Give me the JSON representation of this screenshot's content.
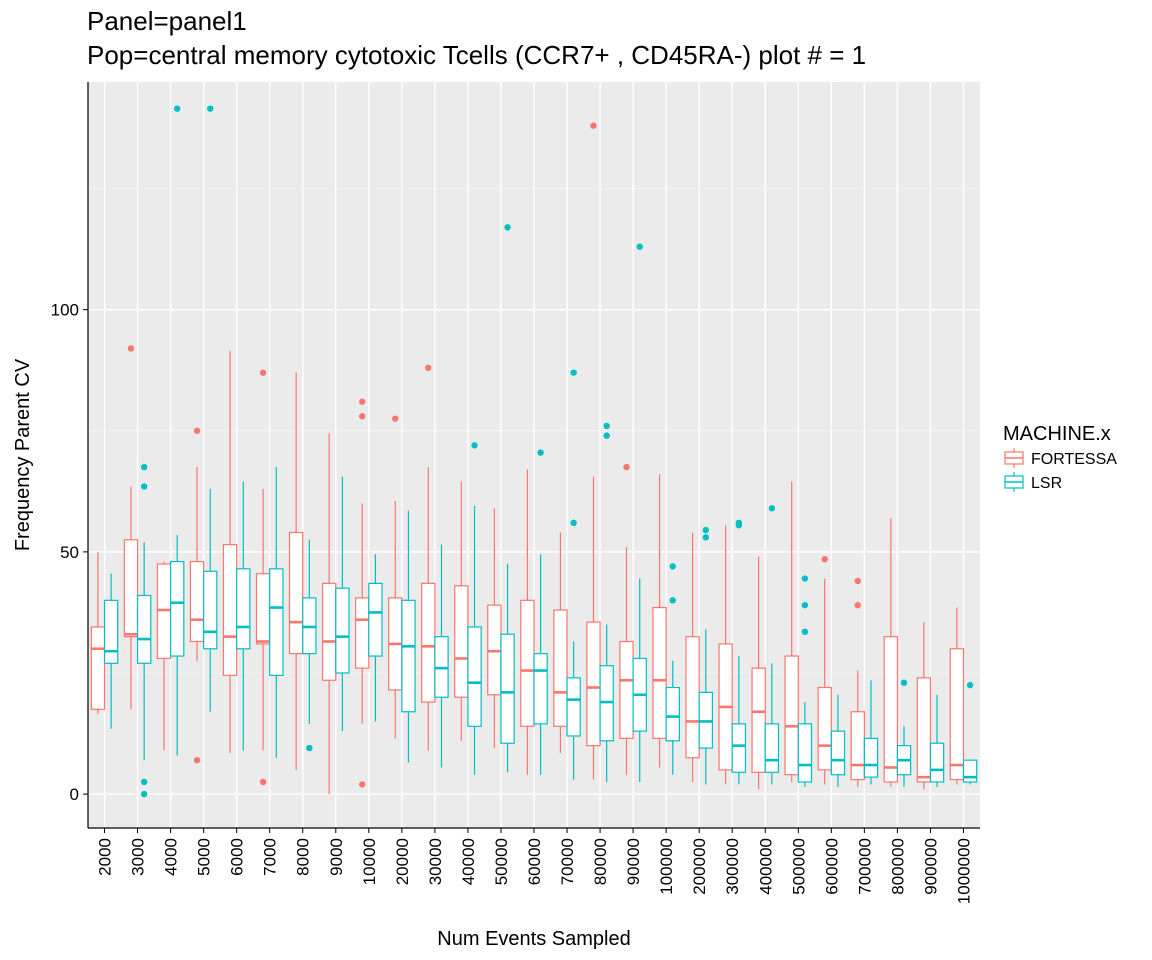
{
  "chart_data": {
    "type": "boxplot",
    "title_lines": [
      "Panel=panel1",
      "Pop=central memory cytotoxic Tcells (CCR7+ , CD45RA-) plot # = 1"
    ],
    "xlabel": "Num Events Sampled",
    "ylabel": "Frequency Parent CV",
    "ylim": [
      -7,
      147
    ],
    "yticks": [
      0,
      50,
      100
    ],
    "legend": {
      "title": "MACHINE.x",
      "position": "right"
    },
    "categories": [
      "2000",
      "3000",
      "4000",
      "5000",
      "6000",
      "7000",
      "8000",
      "9000",
      "10000",
      "20000",
      "30000",
      "40000",
      "50000",
      "60000",
      "70000",
      "80000",
      "90000",
      "100000",
      "200000",
      "300000",
      "400000",
      "500000",
      "600000",
      "700000",
      "800000",
      "900000",
      "1000000"
    ],
    "series": [
      {
        "name": "FORTESSA",
        "color": "#F8766D",
        "boxes": [
          {
            "low": 16.5,
            "q1": 17.5,
            "median": 30,
            "q3": 34.5,
            "high": 50,
            "outliers": []
          },
          {
            "low": 17.5,
            "q1": 32.5,
            "median": 33,
            "q3": 52.5,
            "high": 63.5,
            "outliers": [
              92
            ]
          },
          {
            "low": 9,
            "q1": 28,
            "median": 38,
            "q3": 47.5,
            "high": 48,
            "outliers": []
          },
          {
            "low": 27.5,
            "q1": 31.5,
            "median": 36,
            "q3": 48,
            "high": 67.5,
            "outliers": [
              75,
              7
            ]
          },
          {
            "low": 8.5,
            "q1": 24.5,
            "median": 32.5,
            "q3": 51.5,
            "high": 91.5,
            "outliers": []
          },
          {
            "low": 9,
            "q1": 31,
            "median": 31.5,
            "q3": 45.5,
            "high": 63,
            "outliers": [
              87,
              2.5
            ]
          },
          {
            "low": 5,
            "q1": 29,
            "median": 35.5,
            "q3": 54,
            "high": 87,
            "outliers": []
          },
          {
            "low": 0,
            "q1": 23.5,
            "median": 31.5,
            "q3": 43.5,
            "high": 74.5,
            "outliers": []
          },
          {
            "low": 14.5,
            "q1": 26,
            "median": 36,
            "q3": 40.5,
            "high": 60,
            "outliers": [
              81,
              78,
              2
            ]
          },
          {
            "low": 11.5,
            "q1": 21.5,
            "median": 31,
            "q3": 40.5,
            "high": 60.5,
            "outliers": [
              77.5
            ]
          },
          {
            "low": 9,
            "q1": 19,
            "median": 30.5,
            "q3": 43.5,
            "high": 67.5,
            "outliers": [
              88
            ]
          },
          {
            "low": 11,
            "q1": 20,
            "median": 28,
            "q3": 43,
            "high": 64.5,
            "outliers": []
          },
          {
            "low": 9.5,
            "q1": 20.5,
            "median": 29.5,
            "q3": 39,
            "high": 59,
            "outliers": []
          },
          {
            "low": 4,
            "q1": 14,
            "median": 25.5,
            "q3": 40,
            "high": 67,
            "outliers": []
          },
          {
            "low": 8.5,
            "q1": 14,
            "median": 21,
            "q3": 38,
            "high": 54,
            "outliers": []
          },
          {
            "low": 3,
            "q1": 10,
            "median": 22,
            "q3": 35.5,
            "high": 65.5,
            "outliers": [
              138
            ]
          },
          {
            "low": 4,
            "q1": 11.5,
            "median": 23.5,
            "q3": 31.5,
            "high": 51,
            "outliers": [
              67.5
            ]
          },
          {
            "low": 5.5,
            "q1": 11.5,
            "median": 23.5,
            "q3": 38.5,
            "high": 66,
            "outliers": []
          },
          {
            "low": 2.5,
            "q1": 7.5,
            "median": 15,
            "q3": 32.5,
            "high": 54,
            "outliers": []
          },
          {
            "low": 2,
            "q1": 5,
            "median": 18,
            "q3": 31,
            "high": 55.5,
            "outliers": []
          },
          {
            "low": 1,
            "q1": 4.5,
            "median": 17,
            "q3": 26,
            "high": 49,
            "outliers": []
          },
          {
            "low": 2.5,
            "q1": 4,
            "median": 14,
            "q3": 28.5,
            "high": 64.5,
            "outliers": []
          },
          {
            "low": 2,
            "q1": 5,
            "median": 10,
            "q3": 22,
            "high": 44.5,
            "outliers": [
              48.5
            ]
          },
          {
            "low": 1.5,
            "q1": 3,
            "median": 6,
            "q3": 17,
            "high": 25.5,
            "outliers": [
              44,
              39
            ]
          },
          {
            "low": 1.5,
            "q1": 2.5,
            "median": 5.5,
            "q3": 32.5,
            "high": 57,
            "outliers": []
          },
          {
            "low": 1,
            "q1": 2.5,
            "median": 3.5,
            "q3": 24,
            "high": 35.5,
            "outliers": []
          },
          {
            "low": 2,
            "q1": 3,
            "median": 6,
            "q3": 30,
            "high": 38.5,
            "outliers": []
          }
        ]
      },
      {
        "name": "LSR",
        "color": "#00BFC4",
        "boxes": [
          {
            "low": 13.5,
            "q1": 27,
            "median": 29.5,
            "q3": 40,
            "high": 45.5,
            "outliers": []
          },
          {
            "low": 7,
            "q1": 27,
            "median": 32,
            "q3": 41,
            "high": 52,
            "outliers": [
              67.5,
              63.5,
              2.5,
              0
            ]
          },
          {
            "low": 8,
            "q1": 28.5,
            "median": 39.5,
            "q3": 48,
            "high": 53.5,
            "outliers": [
              141.5
            ]
          },
          {
            "low": 17,
            "q1": 30,
            "median": 33.5,
            "q3": 46,
            "high": 63,
            "outliers": [
              141.5
            ]
          },
          {
            "low": 9,
            "q1": 30,
            "median": 34.5,
            "q3": 46.5,
            "high": 64.5,
            "outliers": []
          },
          {
            "low": 7.5,
            "q1": 24.5,
            "median": 38.5,
            "q3": 46.5,
            "high": 67.5,
            "outliers": []
          },
          {
            "low": 14.5,
            "q1": 29,
            "median": 34.5,
            "q3": 40.5,
            "high": 52.5,
            "outliers": [
              9.5
            ]
          },
          {
            "low": 13,
            "q1": 25,
            "median": 32.5,
            "q3": 42.5,
            "high": 65.5,
            "outliers": []
          },
          {
            "low": 15,
            "q1": 28.5,
            "median": 37.5,
            "q3": 43.5,
            "high": 49.5,
            "outliers": []
          },
          {
            "low": 6.5,
            "q1": 17,
            "median": 30.5,
            "q3": 40,
            "high": 58.5,
            "outliers": []
          },
          {
            "low": 5.5,
            "q1": 20,
            "median": 26,
            "q3": 32.5,
            "high": 51.5,
            "outliers": []
          },
          {
            "low": 4,
            "q1": 14,
            "median": 23,
            "q3": 34.5,
            "high": 59.5,
            "outliers": [
              72
            ]
          },
          {
            "low": 4.5,
            "q1": 10.5,
            "median": 21,
            "q3": 33,
            "high": 47.5,
            "outliers": [
              117
            ]
          },
          {
            "low": 4,
            "q1": 14.5,
            "median": 25.5,
            "q3": 29,
            "high": 49.5,
            "outliers": [
              70.5
            ]
          },
          {
            "low": 3,
            "q1": 12,
            "median": 19.5,
            "q3": 24,
            "high": 31.5,
            "outliers": [
              87,
              56
            ]
          },
          {
            "low": 2.5,
            "q1": 11,
            "median": 19,
            "q3": 26.5,
            "high": 35,
            "outliers": [
              76,
              74
            ]
          },
          {
            "low": 2.5,
            "q1": 13,
            "median": 20.5,
            "q3": 28,
            "high": 44.5,
            "outliers": [
              113
            ]
          },
          {
            "low": 4,
            "q1": 11,
            "median": 16,
            "q3": 22,
            "high": 27.5,
            "outliers": [
              47,
              40
            ]
          },
          {
            "low": 2,
            "q1": 9.5,
            "median": 15,
            "q3": 21,
            "high": 34,
            "outliers": [
              54.5,
              53
            ]
          },
          {
            "low": 2,
            "q1": 4.5,
            "median": 10,
            "q3": 14.5,
            "high": 28.5,
            "outliers": [
              56,
              55.5
            ]
          },
          {
            "low": 2,
            "q1": 4.5,
            "median": 7,
            "q3": 14.5,
            "high": 27,
            "outliers": [
              59
            ]
          },
          {
            "low": 1.5,
            "q1": 2.5,
            "median": 6,
            "q3": 14.5,
            "high": 19,
            "outliers": [
              44.5,
              39,
              33.5
            ]
          },
          {
            "low": 1.5,
            "q1": 4,
            "median": 7,
            "q3": 13,
            "high": 20.5,
            "outliers": []
          },
          {
            "low": 2,
            "q1": 3.5,
            "median": 6,
            "q3": 11.5,
            "high": 23.5,
            "outliers": []
          },
          {
            "low": 1.5,
            "q1": 4,
            "median": 7,
            "q3": 10,
            "high": 14,
            "outliers": [
              23
            ]
          },
          {
            "low": 1.5,
            "q1": 2.5,
            "median": 5,
            "q3": 10.5,
            "high": 20.5,
            "outliers": []
          },
          {
            "low": 2,
            "q1": 2.5,
            "median": 3.5,
            "q3": 7,
            "high": 7,
            "outliers": [
              22.5
            ]
          }
        ]
      }
    ]
  }
}
